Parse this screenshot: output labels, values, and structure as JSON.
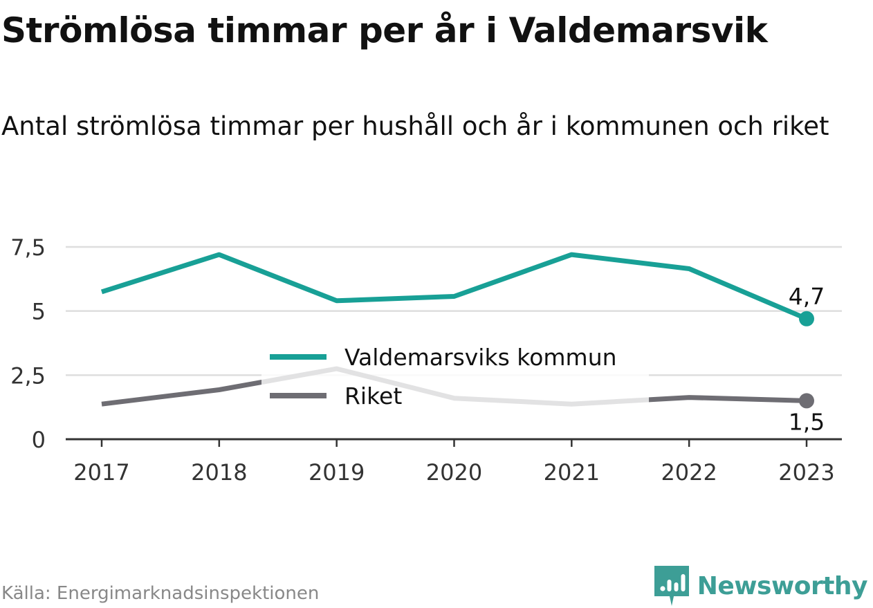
{
  "title": "Strömlösa timmar per år i Valdemarsvik",
  "subtitle": "Antal strömlösa timmar per hushåll och år i kommunen och riket",
  "source": "Källa: Energimarknadsinspektionen",
  "brand": {
    "name": "Newsworthy",
    "icon": "newsworthy-logo-icon",
    "color": "#3d9e96"
  },
  "chart_data": {
    "type": "line",
    "title": "",
    "xlabel": "",
    "ylabel": "",
    "x": [
      "2017",
      "2018",
      "2019",
      "2020",
      "2021",
      "2022",
      "2023"
    ],
    "ylim": [
      0,
      7.5
    ],
    "yticks": [
      0,
      2.5,
      5,
      7.5
    ],
    "ytick_labels": [
      "0",
      "2,5",
      "5",
      "7,5"
    ],
    "grid": true,
    "legend_position": "center",
    "series": [
      {
        "name": "Valdemarsviks kommun",
        "color": "#18a096",
        "values": [
          5.75,
          7.2,
          5.4,
          5.57,
          7.2,
          6.65,
          4.7
        ],
        "end_label": "4,7"
      },
      {
        "name": "Riket",
        "color": "#6e6d73",
        "values": [
          1.37,
          1.93,
          2.75,
          1.6,
          1.37,
          1.63,
          1.5
        ],
        "end_label": "1,5"
      }
    ]
  }
}
